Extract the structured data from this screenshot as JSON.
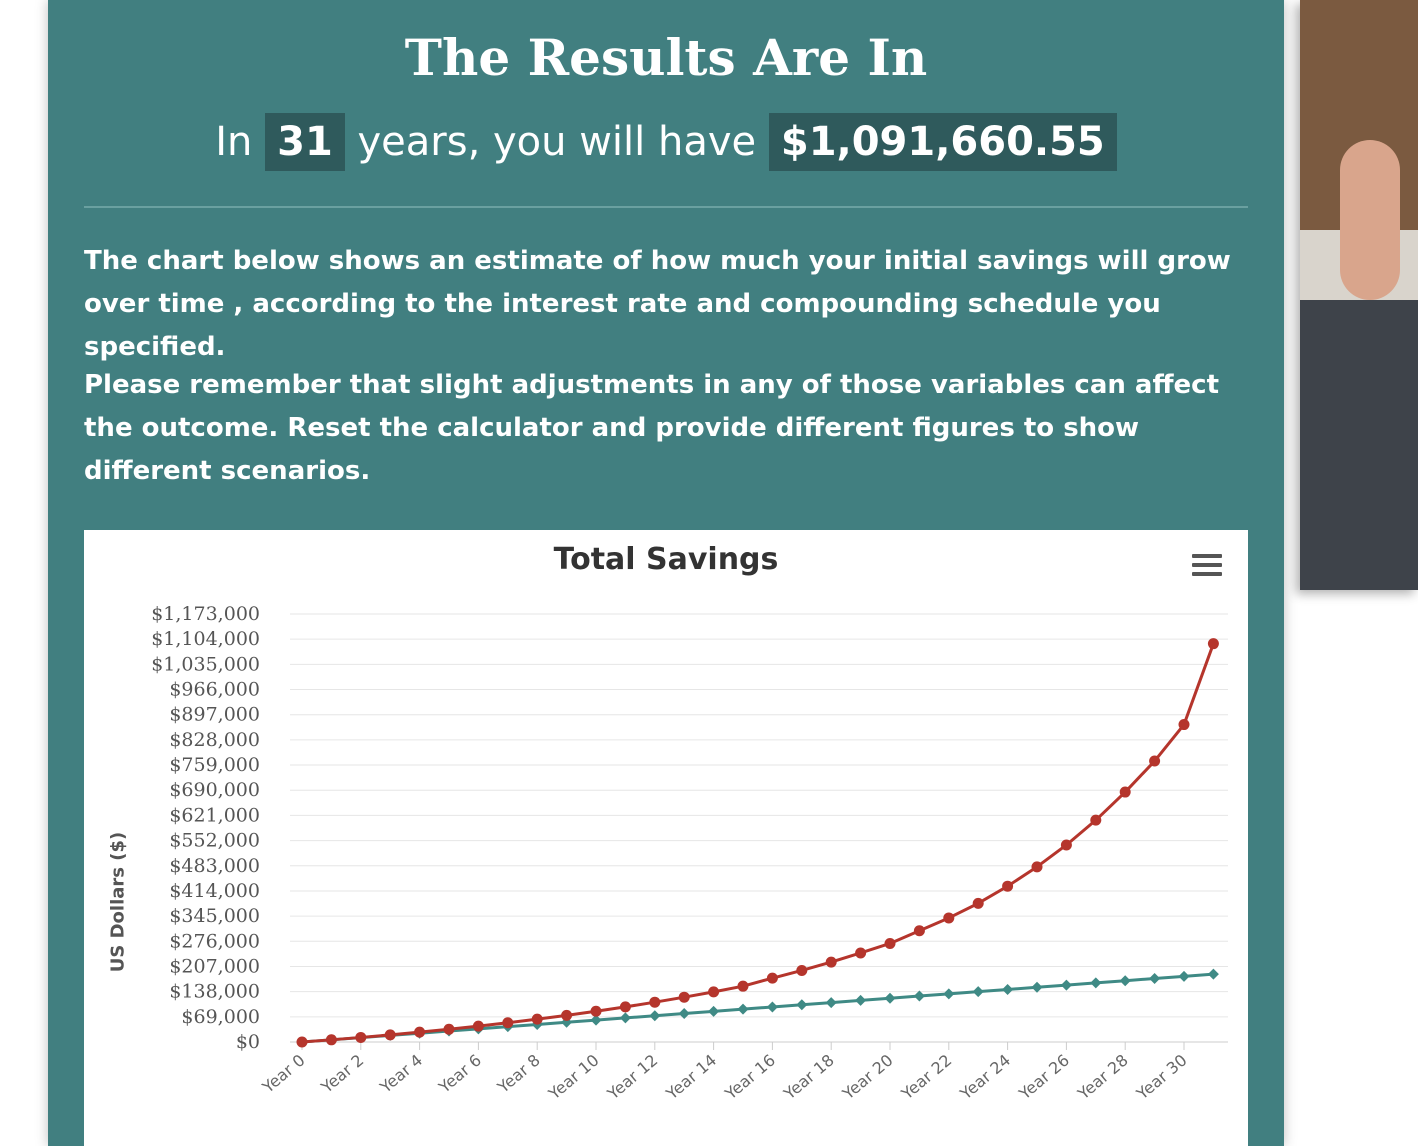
{
  "header": {
    "title": "The Results Are In",
    "summary_prefix": "In",
    "years": "31",
    "summary_middle": "years, you will have",
    "amount": "$1,091,660.55"
  },
  "paragraphs": {
    "p1": "The chart below shows an estimate of how much your initial savings will grow over time , according to the interest rate and compounding schedule you specified.",
    "p2": "Please remember that slight adjustments in any of those variables can affect the outcome. Reset the calculator and provide different figures to show different scenarios."
  },
  "colors": {
    "panel_bg": "#417f80",
    "highlight_bg": "#2f5a5c",
    "series_total": "#b5352c",
    "series_principal": "#3f8a85"
  },
  "chart_data": {
    "type": "line",
    "title": "Total Savings",
    "ylabel": "US Dollars ($)",
    "xlabel": "",
    "ylim": [
      0,
      1173000
    ],
    "yticks": [
      "$0",
      "$69,000",
      "$138,000",
      "$207,000",
      "$276,000",
      "$345,000",
      "$414,000",
      "$483,000",
      "$552,000",
      "$621,000",
      "$690,000",
      "$759,000",
      "$828,000",
      "$897,000",
      "$966,000",
      "$1,035,000",
      "$1,104,000",
      "$1,173,000"
    ],
    "ytick_values": [
      0,
      69000,
      138000,
      207000,
      276000,
      345000,
      414000,
      483000,
      552000,
      621000,
      690000,
      759000,
      828000,
      897000,
      966000,
      1035000,
      1104000,
      1173000
    ],
    "x": [
      "Year 0",
      "Year 1",
      "Year 2",
      "Year 3",
      "Year 4",
      "Year 5",
      "Year 6",
      "Year 7",
      "Year 8",
      "Year 9",
      "Year 10",
      "Year 11",
      "Year 12",
      "Year 13",
      "Year 14",
      "Year 15",
      "Year 16",
      "Year 17",
      "Year 18",
      "Year 19",
      "Year 20",
      "Year 21",
      "Year 22",
      "Year 23",
      "Year 24",
      "Year 25",
      "Year 26",
      "Year 27",
      "Year 28",
      "Year 29",
      "Year 30",
      "Year 31"
    ],
    "xtick_labels": [
      "Year 0",
      "Year 2",
      "Year 4",
      "Year 6",
      "Year 8",
      "Year 10",
      "Year 12",
      "Year 14",
      "Year 16",
      "Year 18",
      "Year 20",
      "Year 22",
      "Year 24",
      "Year 26",
      "Year 28",
      "Year 30"
    ],
    "grid": true,
    "legend": "none",
    "series": [
      {
        "values": [
          0,
          6000,
          12500,
          19500,
          27000,
          35000,
          43600,
          52800,
          62600,
          73100,
          84300,
          96300,
          109100,
          122800,
          137400,
          153000,
          175000,
          196000,
          219000,
          244000,
          270000,
          305000,
          340000,
          380000,
          427000,
          480000,
          540000,
          608000,
          685000,
          770000,
          870000,
          1091660
        ]
      },
      {
        "values": [
          0,
          6000,
          12000,
          18000,
          24000,
          30000,
          36000,
          42000,
          48000,
          54000,
          60000,
          66000,
          72000,
          78000,
          84000,
          90000,
          96000,
          102000,
          108000,
          114000,
          120000,
          126000,
          132000,
          138000,
          144000,
          150000,
          156000,
          162000,
          168000,
          174000,
          180000,
          186000
        ]
      }
    ]
  }
}
